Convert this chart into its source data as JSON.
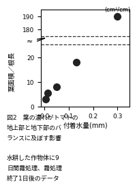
{
  "x_data": [
    0.005,
    0.012,
    0.05,
    0.13,
    0.3
  ],
  "y_data_lower": [
    3.0,
    5.5,
    8.0,
    18.0,
    null
  ],
  "y_data_upper": [
    null,
    null,
    null,
    null,
    190.0
  ],
  "dashed_line_y_lower": 25.0,
  "dashed_line_y_upper": 175.0,
  "xlabel": "付着水量(mm)",
  "ylabel_top": "(cm²/cm)",
  "ylabel_bottom": "葉面積／根長",
  "xlim": [
    -0.015,
    0.35
  ],
  "ylim_lower": [
    0,
    27
  ],
  "ylim_upper": [
    173,
    195
  ],
  "xticks": [
    0,
    0.1,
    0.2,
    0.3
  ],
  "yticks_lower": [
    0,
    10,
    20
  ],
  "yticks_upper": [
    180,
    190
  ],
  "background_color": "#ffffff",
  "marker_color": "#222222",
  "marker_size": 7,
  "dashed_line_color": "#333333",
  "caption_line1": "図2　葉の濃れがトマトの",
  "caption_line2": "地上部と地下部のバ",
  "caption_line3": "ランスに及ぼす影響",
  "caption_line4": "水耕した作物体に9",
  "caption_line5": "日間霧処理、霧処理",
  "caption_line6": "終了1日後のデータ"
}
